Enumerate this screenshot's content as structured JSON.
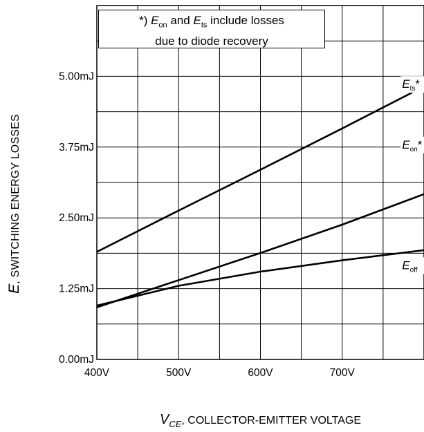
{
  "chart_data": {
    "type": "line",
    "xlabel": {
      "symbol": "V",
      "subscript": "CE",
      "text": ", COLLECTOR-EMITTER VOLTAGE"
    },
    "ylabel": {
      "symbol": "E",
      "text": ", SWITCHING ENERGY LOSSES"
    },
    "x_ticks": [
      {
        "value": 400,
        "label": "400V"
      },
      {
        "value": 500,
        "label": "500V"
      },
      {
        "value": 600,
        "label": "600V"
      },
      {
        "value": 700,
        "label": "700V"
      }
    ],
    "y_ticks": [
      {
        "value": 0.0,
        "label": "0.00mJ"
      },
      {
        "value": 1.25,
        "label": "1.25mJ"
      },
      {
        "value": 2.5,
        "label": "2.50mJ"
      },
      {
        "value": 3.75,
        "label": "3.75mJ"
      },
      {
        "value": 5.0,
        "label": "5.00mJ"
      }
    ],
    "xlim": [
      400,
      800
    ],
    "ylim": [
      0,
      6.25
    ],
    "grid": true,
    "series": [
      {
        "name": "Ets*",
        "symbol": "E",
        "subscript": "ts",
        "suffix": "*",
        "x": [
          400,
          500,
          600,
          700,
          800
        ],
        "y": [
          1.9,
          2.63,
          3.35,
          4.08,
          4.82
        ]
      },
      {
        "name": "Eon*",
        "symbol": "E",
        "subscript": "on",
        "suffix": "*",
        "x": [
          400,
          500,
          600,
          700,
          800
        ],
        "y": [
          0.92,
          1.4,
          1.88,
          2.38,
          2.92
        ]
      },
      {
        "name": "Eoff",
        "symbol": "E",
        "subscript": "off",
        "suffix": "",
        "x": [
          400,
          500,
          600,
          700,
          800
        ],
        "y": [
          0.95,
          1.3,
          1.55,
          1.75,
          1.93
        ]
      }
    ],
    "annotation": {
      "prefix": "*) ",
      "sym1": "E",
      "sub1": "on",
      "mid": " and ",
      "sym2": "E",
      "sub2": "ts",
      "line1_rest": " include losses",
      "line2": "due to diode recovery"
    },
    "colors": {
      "line": "#000000",
      "grid": "#000000",
      "background": "#ffffff"
    }
  }
}
